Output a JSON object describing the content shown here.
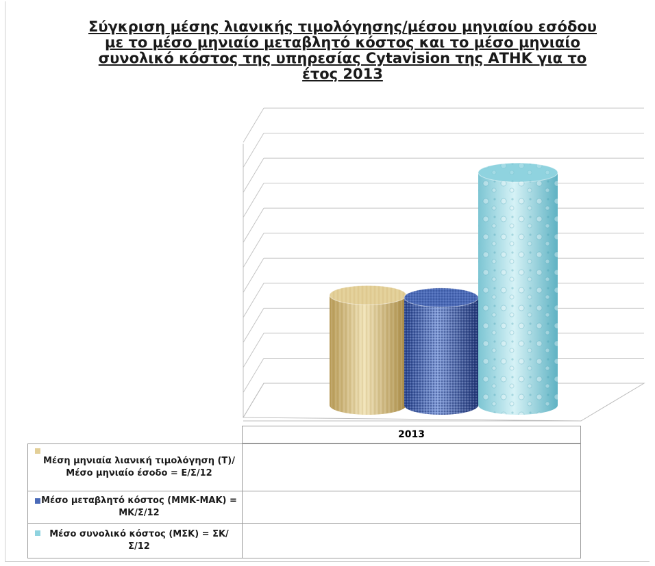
{
  "chart_data": {
    "type": "bar",
    "title_lines": [
      "Σύγκριση μέσης λιανικής τιμολόγησης/μέσου μηνιαίου εσόδου",
      "με το μέσο μηνιαίο μεταβλητό κόστος και το μέσο μηνιαίο",
      "συνολικό κόστος της υπηρεσίας Cytavision της ΑΤΗΚ για το",
      "έτος 2013"
    ],
    "categories": [
      "2013"
    ],
    "series": [
      {
        "name": "Μέση μηνιαία λιανική τιμολόγηση (Τ)/ Μέσο μηνιαίο έσοδο = Ε/Σ/12",
        "values": [
          4.4
        ],
        "color": "#e3cf97"
      },
      {
        "name": "Μέσο μεταβλητό κόστος (ΜΜΚ-ΜΑΚ) = ΜΚ/Σ/12",
        "values": [
          4.3
        ],
        "color": "#4a6ab8"
      },
      {
        "name": "Μέσο συνολικό κόστος (ΜΣΚ) = ΣΚ/Σ/12",
        "values": [
          9.3
        ],
        "color": "#8fd3df"
      }
    ],
    "ylim": [
      0,
      11
    ],
    "grid": true,
    "legend": "data-table"
  }
}
